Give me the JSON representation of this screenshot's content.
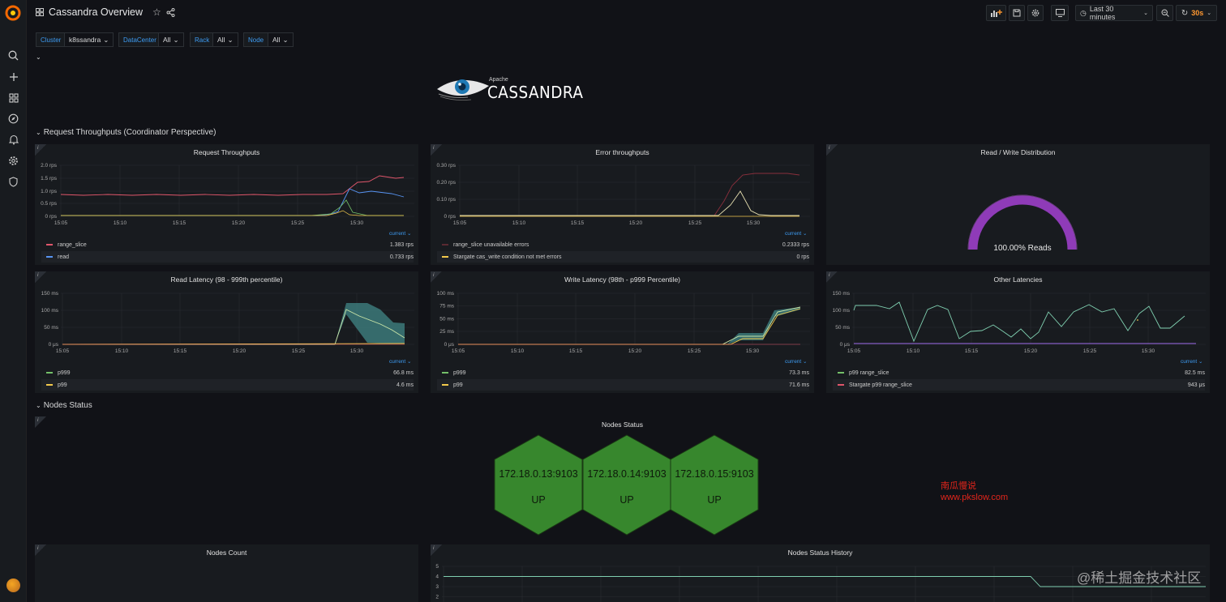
{
  "header": {
    "title": "Cassandra Overview",
    "time_range": "Last 30 minutes",
    "refresh": "30s"
  },
  "variables": [
    {
      "label": "Cluster",
      "value": "k8ssandra"
    },
    {
      "label": "DataCenter",
      "value": "All"
    },
    {
      "label": "Rack",
      "value": "All"
    },
    {
      "label": "Node",
      "value": "All"
    }
  ],
  "logo": {
    "small": "Apache",
    "big": "CASSANDRA"
  },
  "rows": {
    "throughputs": "Request Throughputs (Coordinator Perspective)",
    "nodes": "Nodes Status"
  },
  "legend_current": "current",
  "time_ticks": [
    "15:05",
    "15:10",
    "15:15",
    "15:20",
    "15:25",
    "15:30"
  ],
  "panels": {
    "request_throughputs": {
      "title": "Request Throughputs",
      "yticks": [
        "2.0 rps",
        "1.5 rps",
        "1.0 rps",
        "0.5 rps",
        "0 rps"
      ],
      "legend": [
        {
          "name": "range_slice",
          "value": "1.383 rps",
          "color": "#e0566b"
        },
        {
          "name": "read",
          "value": "0.733 rps",
          "color": "#5794f2"
        }
      ]
    },
    "error_throughputs": {
      "title": "Error throughputs",
      "yticks": [
        "0.30 rps",
        "0.20 rps",
        "0.10 rps",
        "0 rps"
      ],
      "legend": [
        {
          "name": "range_slice unavailable errors",
          "value": "0.2333 rps",
          "color": "#e0566b"
        },
        {
          "name": "Stargate cas_write condition not met errors",
          "value": "0 rps",
          "color": "#f2c94c"
        }
      ]
    },
    "rw_distribution": {
      "title": "Read / Write Distribution",
      "value": "100.00% Reads",
      "gauge_fraction": 1.0
    },
    "read_latency": {
      "title": "Read Latency (98 - 999th percentile)",
      "yticks": [
        "150 ms",
        "100 ms",
        "50 ms",
        "0 μs"
      ],
      "legend": [
        {
          "name": "p999",
          "value": "66.8 ms",
          "color": "#73bf69"
        },
        {
          "name": "p99",
          "value": "4.6 ms",
          "color": "#f2c94c"
        }
      ]
    },
    "write_latency": {
      "title": "Write Latency (98th - p999 Percentile)",
      "yticks": [
        "100 ms",
        "75 ms",
        "50 ms",
        "25 ms",
        "0 μs"
      ],
      "legend": [
        {
          "name": "p999",
          "value": "73.3 ms",
          "color": "#73bf69"
        },
        {
          "name": "p99",
          "value": "71.6 ms",
          "color": "#f2c94c"
        }
      ]
    },
    "other_latencies": {
      "title": "Other Latencies",
      "yticks": [
        "150 ms",
        "100 ms",
        "50 ms",
        "0 μs"
      ],
      "legend": [
        {
          "name": "p99 range_slice",
          "value": "82.5 ms",
          "color": "#73bf69"
        },
        {
          "name": "Stargate p99 range_slice",
          "value": "943 μs",
          "color": "#e0566b"
        }
      ]
    },
    "nodes_status": {
      "title": "Nodes Status",
      "nodes": [
        {
          "addr": "172.18.0.13:9103",
          "state": "UP"
        },
        {
          "addr": "172.18.0.14:9103",
          "state": "UP"
        },
        {
          "addr": "172.18.0.15:9103",
          "state": "UP"
        }
      ]
    },
    "nodes_count": {
      "title": "Nodes Count"
    },
    "nodes_history": {
      "title": "Nodes Status History",
      "yticks": [
        "5",
        "4",
        "3",
        "2"
      ]
    }
  },
  "watermark": {
    "cn": "南瓜慢说",
    "url": "www.pkslow.com",
    "site": "@稀土掘金技术社区"
  },
  "colors": {
    "accent": "#3d9bf2",
    "gauge": "#8f3bb8",
    "node_up": "#37872d",
    "refresh": "#ff9830"
  }
}
